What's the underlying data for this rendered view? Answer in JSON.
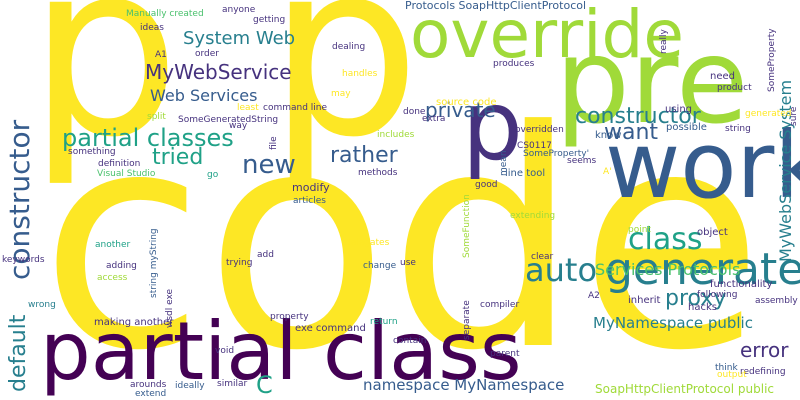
{
  "words": {
    "code": "code",
    "p": "p",
    "override": "override",
    "pre": "pre",
    "work": "work",
    "partial_class": "partial class",
    "generated": "generated",
    "auto": "auto",
    "constructor_v": "constructor",
    "default_v": "default",
    "class": "class",
    "constructor": "constructor",
    "partial_classes": "partial classes",
    "mywebservice": "MyWebService",
    "web_services": "Web Services",
    "system_web": "System Web",
    "tried": "tried",
    "rather": "rather",
    "new": "new",
    "private": "private",
    "want": "want",
    "proxy": "proxy",
    "error": "error",
    "services_protocols": "Services Protocols",
    "mynamespace_public": "MyNamespace public",
    "namespace_mynamespace": "namespace MyNamespace",
    "c": "C",
    "protocols_soap": "Protocols SoapHttpClientProtocol",
    "mywebservice_system_v": "MyWebService System",
    "soaphttp_public": "SoapHttpClientProtocol public",
    "source_code": "source code",
    "modify": "modify",
    "possible": "possible",
    "know": "know",
    "need": "need",
    "using": "using",
    "line_tool": "line tool",
    "object": "object",
    "clear": "clear",
    "point": "point",
    "functionality": "functionality",
    "inherit": "inherit",
    "hacks": "hacks",
    "exe_command": "exe command",
    "making_another": "making another",
    "parent": "parent",
    "contain": "contain",
    "think": "think",
    "redefining": "redefining",
    "output": "output",
    "ideally": "ideally",
    "similar": "similar",
    "arounds": "arounds",
    "extend": "extend",
    "void": "void",
    "property": "property",
    "return": "return",
    "change": "change",
    "use": "use",
    "wrong": "wrong",
    "keywords": "keywords",
    "access": "access",
    "adding": "adding",
    "another": "another",
    "trying": "trying",
    "add": "add",
    "delegates": "delegates",
    "visual_studio": "Visual Studio",
    "definition": "definition",
    "something": "something",
    "split": "split",
    "some_generated_string": "SomeGeneratedString",
    "least": "least",
    "command_line": "command line",
    "way": "way",
    "go": "go",
    "articles": "articles",
    "methods": "methods",
    "manually_created": "Manually created",
    "anyone": "anyone",
    "getting": "getting",
    "ideas": "ideas",
    "order": "order",
    "a1": "A1",
    "dealing": "dealing",
    "handles": "handles",
    "may": "may",
    "produces": "produces",
    "done": "done",
    "extra": "extra",
    "includes": "includes",
    "overridden": "overridden",
    "cs0117": "CS0117",
    "some_property_q": "SomeProperty'",
    "seems": "seems",
    "good": "good",
    "extending": "extending",
    "compiler": "compiler",
    "a2": "A2",
    "following": "following",
    "assembly": "assembly",
    "product": "product",
    "string": "string",
    "generated_small": "generated",
    "a_prime": "A'",
    "string_mystring_v": "string myString",
    "wsdl_exe_v": "wsdl exe",
    "file_v": "file",
    "separate_v": "separate",
    "some_function_v": "SomeFunction",
    "mean_v": "mean",
    "sure_v": "sure",
    "really_v": "really",
    "some_property_v": "SomeProperty"
  }
}
